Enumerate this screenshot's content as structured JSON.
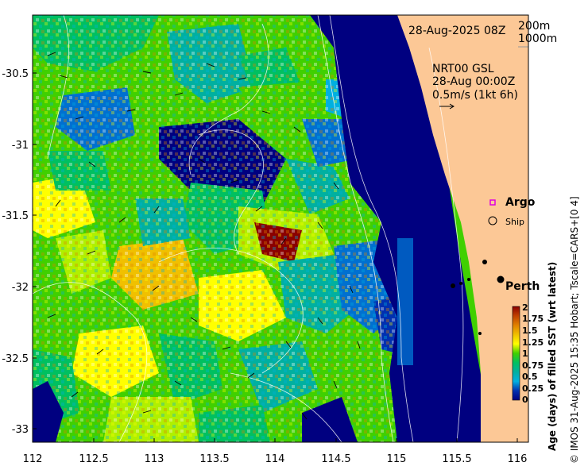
{
  "map": {
    "date_label": "28-Aug-2025 08Z",
    "scale_labels": [
      "200m",
      "1000m"
    ],
    "current_annotation": [
      "NRT00 GSL",
      "28-Aug 00:00Z",
      "0.5m/s (1kt 6h)"
    ],
    "x_ticks": [
      "112",
      "112.5",
      "113",
      "113.5",
      "114",
      "114.5",
      "115",
      "115.5",
      "116"
    ],
    "y_ticks": [
      "-30.5",
      "-31",
      "-31.5",
      "-32",
      "-32.5",
      "-33"
    ],
    "legend": {
      "argo": "Argo",
      "ship": "Ship"
    },
    "place": "Perth",
    "colorbar": {
      "ticks": [
        "2",
        "1.75",
        "1.5",
        "1.25",
        "1",
        "0.75",
        "0.5",
        "0.25",
        "0"
      ],
      "label": "Age (days) of filled SST (wrt latest)",
      "colors": [
        "#8b0000",
        "#c04000",
        "#e08000",
        "#f0c000",
        "#ffff00",
        "#b0f000",
        "#40d000",
        "#00c060",
        "#00b0a0",
        "#00b0e0",
        "#0070d0",
        "#0030b0",
        "#000080"
      ]
    },
    "credit": "© IMOS 31-Aug-2025 15:35 Hobart; Tscale=CARS+[0 4]",
    "colors": {
      "land": "#fcc896",
      "deep": "#000080"
    }
  }
}
